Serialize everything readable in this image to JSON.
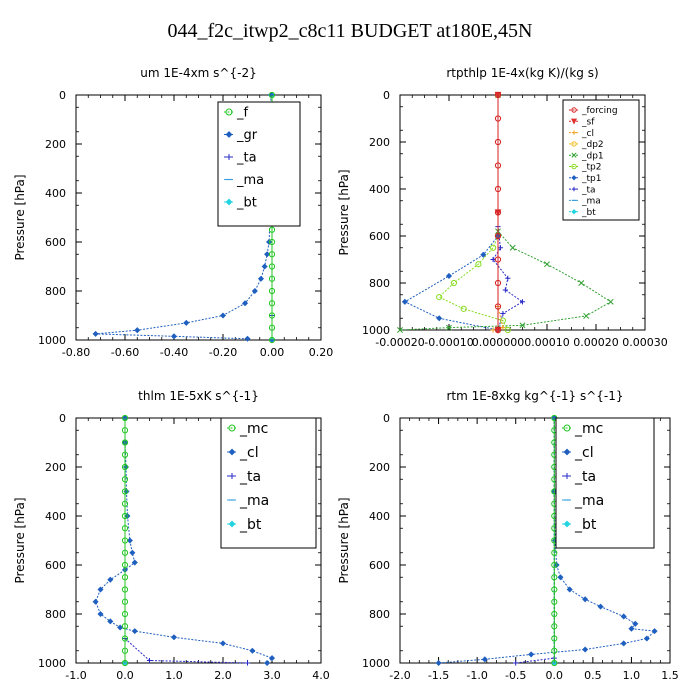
{
  "page": {
    "title": "044_f2c_itwp2_c8c11  BUDGET at180E,45N"
  },
  "chart_data": [
    {
      "type": "line",
      "title": "um   1E-4xm  s^{-2}",
      "ylabel": "Pressure [hPa]",
      "xlim": [
        -0.8,
        0.2
      ],
      "ylim": [
        1000,
        0
      ],
      "xticks": [
        -0.8,
        -0.6,
        -0.4,
        -0.2,
        0.0,
        0.2
      ],
      "xtick_labels": [
        "-0.80",
        "-0.60",
        "-0.40",
        "-0.20",
        "0.00",
        "0.20"
      ],
      "yticks": [
        0,
        200,
        400,
        600,
        800,
        1000
      ],
      "ytick_labels": [
        "0",
        "200",
        "400",
        "600",
        "800",
        "1000"
      ],
      "legend_position": "top-right",
      "series": [
        {
          "name": "_f",
          "color": "#22c522",
          "marker": "circle",
          "points": [
            [
              0,
              0
            ],
            [
              0,
              50
            ],
            [
              0,
              100
            ],
            [
              0,
              150
            ],
            [
              0,
              200
            ],
            [
              0,
              250
            ],
            [
              0,
              300
            ],
            [
              0,
              350
            ],
            [
              0,
              400
            ],
            [
              0,
              450
            ],
            [
              0,
              500
            ],
            [
              0,
              550
            ],
            [
              0,
              600
            ],
            [
              0,
              650
            ],
            [
              0,
              700
            ],
            [
              0,
              750
            ],
            [
              0,
              800
            ],
            [
              0,
              850
            ],
            [
              0,
              900
            ],
            [
              0,
              950
            ],
            [
              0,
              1000
            ]
          ]
        },
        {
          "name": "_gr",
          "color": "#1f5fbf",
          "marker": "diamond",
          "points": [
            [
              -0.005,
              0
            ],
            [
              -0.005,
              200
            ],
            [
              -0.006,
              400
            ],
            [
              -0.008,
              500
            ],
            [
              -0.012,
              600
            ],
            [
              -0.02,
              650
            ],
            [
              -0.03,
              700
            ],
            [
              -0.045,
              750
            ],
            [
              -0.07,
              800
            ],
            [
              -0.11,
              850
            ],
            [
              -0.2,
              900
            ],
            [
              -0.35,
              930
            ],
            [
              -0.55,
              960
            ],
            [
              -0.72,
              975
            ],
            [
              -0.4,
              985
            ],
            [
              -0.1,
              995
            ]
          ]
        },
        {
          "name": "_ta",
          "color": "#2a2ac8",
          "marker": "plus",
          "points": [
            [
              0,
              0
            ],
            [
              0,
              500
            ],
            [
              0,
              900
            ],
            [
              0,
              1000
            ]
          ]
        },
        {
          "name": "_ma",
          "color": "#3aa0e0",
          "marker": "dash",
          "points": [
            [
              0,
              0
            ],
            [
              0,
              500
            ],
            [
              0,
              1000
            ]
          ]
        },
        {
          "name": "_bt",
          "color": "#22d3e0",
          "marker": "diamond",
          "points": [
            [
              0,
              0
            ],
            [
              0,
              500
            ],
            [
              0,
              1000
            ]
          ]
        }
      ]
    },
    {
      "type": "line",
      "title": "rtpthlp   1E-4x(kg K)/(kg s)",
      "ylabel": "Pressure [hPa]",
      "xlim": [
        -0.0002,
        0.0003
      ],
      "ylim": [
        1000,
        0
      ],
      "xticks": [
        -0.0002,
        -0.0001,
        0.0,
        0.0001,
        0.0002,
        0.0003
      ],
      "xtick_labels": [
        "-0.00020",
        "-0.00010",
        "0.000000",
        "0.00010",
        "0.00020",
        "0.00030"
      ],
      "yticks": [
        0,
        200,
        400,
        600,
        800,
        1000
      ],
      "ytick_labels": [
        "0",
        "200",
        "400",
        "600",
        "800",
        "1000"
      ],
      "legend_position": "top-right",
      "series": [
        {
          "name": "_forcing",
          "color": "#d42020",
          "marker": "circle",
          "points": [
            [
              0,
              0
            ],
            [
              0,
              100
            ],
            [
              0,
              200
            ],
            [
              0,
              300
            ],
            [
              0,
              400
            ],
            [
              0,
              500
            ],
            [
              0,
              600
            ],
            [
              0,
              700
            ],
            [
              0,
              800
            ],
            [
              0,
              900
            ],
            [
              0,
              1000
            ]
          ]
        },
        {
          "name": "_sf",
          "color": "#e03030",
          "marker": "down-triangle",
          "points": [
            [
              0,
              0
            ],
            [
              0,
              500
            ],
            [
              0,
              1000
            ]
          ]
        },
        {
          "name": "_cl",
          "color": "#f0a020",
          "marker": "plus",
          "points": [
            [
              0,
              0
            ],
            [
              0,
              900
            ],
            [
              1e-05,
              990
            ],
            [
              -1e-05,
              1000
            ]
          ]
        },
        {
          "name": "_dp2",
          "color": "#f0c020",
          "marker": "circle",
          "points": [
            [
              0,
              0
            ],
            [
              0,
              1000
            ]
          ]
        },
        {
          "name": "_dp1",
          "color": "#30a030",
          "marker": "x",
          "points": [
            [
              0,
              0
            ],
            [
              0,
              580
            ],
            [
              3e-05,
              650
            ],
            [
              0.0001,
              720
            ],
            [
              0.00017,
              800
            ],
            [
              0.00023,
              880
            ],
            [
              0.00018,
              940
            ],
            [
              5e-05,
              980
            ],
            [
              -0.0001,
              990
            ],
            [
              -0.0002,
              1000
            ]
          ]
        },
        {
          "name": "_tp2",
          "color": "#88dd22",
          "marker": "circle",
          "points": [
            [
              0,
              0
            ],
            [
              0,
              600
            ],
            [
              -1e-05,
              650
            ],
            [
              -4e-05,
              720
            ],
            [
              -9e-05,
              800
            ],
            [
              -0.00012,
              860
            ],
            [
              -7e-05,
              910
            ],
            [
              1e-05,
              960
            ],
            [
              2e-05,
              1000
            ]
          ]
        },
        {
          "name": "_tp1",
          "color": "#1f5fbf",
          "marker": "diamond",
          "points": [
            [
              0,
              0
            ],
            [
              0,
              600
            ],
            [
              -3e-05,
              680
            ],
            [
              -0.0001,
              770
            ],
            [
              -0.00019,
              880
            ],
            [
              -0.00012,
              950
            ],
            [
              0,
              1000
            ]
          ]
        },
        {
          "name": "_ta",
          "color": "#2a2ac8",
          "marker": "plus",
          "points": [
            [
              0,
              0
            ],
            [
              0,
              560
            ],
            [
              5e-06,
              650
            ],
            [
              -1e-05,
              700
            ],
            [
              2e-05,
              780
            ],
            [
              1.5e-05,
              830
            ],
            [
              5e-05,
              880
            ],
            [
              1e-05,
              930
            ],
            [
              0,
              1000
            ]
          ]
        },
        {
          "name": "_ma",
          "color": "#3aa0e0",
          "marker": "dash",
          "points": [
            [
              0,
              0
            ],
            [
              0,
              1000
            ]
          ]
        },
        {
          "name": "_bt",
          "color": "#22d3e0",
          "marker": "diamond",
          "points": [
            [
              0,
              0
            ],
            [
              0,
              1000
            ]
          ]
        }
      ]
    },
    {
      "type": "line",
      "title": "thlm   1E-5xK  s^{-1}",
      "ylabel": "Pressure [hPa]",
      "xlim": [
        -1.0,
        4.0
      ],
      "ylim": [
        1000,
        0
      ],
      "xticks": [
        -1.0,
        0.0,
        1.0,
        2.0,
        3.0,
        4.0
      ],
      "xtick_labels": [
        "-1.0",
        "0.0",
        "1.0",
        "2.0",
        "3.0",
        "4.0"
      ],
      "yticks": [
        0,
        200,
        400,
        600,
        800,
        1000
      ],
      "ytick_labels": [
        "0",
        "200",
        "400",
        "600",
        "800",
        "1000"
      ],
      "legend_position": "top-right",
      "series": [
        {
          "name": "_mc",
          "color": "#22c522",
          "marker": "circle",
          "points": [
            [
              0,
              0
            ],
            [
              0,
              50
            ],
            [
              0,
              100
            ],
            [
              0,
              150
            ],
            [
              0,
              200
            ],
            [
              0,
              250
            ],
            [
              0,
              300
            ],
            [
              0,
              350
            ],
            [
              0,
              400
            ],
            [
              0,
              450
            ],
            [
              0,
              500
            ],
            [
              0,
              550
            ],
            [
              0,
              600
            ],
            [
              0,
              650
            ],
            [
              0,
              700
            ],
            [
              0,
              750
            ],
            [
              0,
              800
            ],
            [
              0,
              850
            ],
            [
              0,
              900
            ],
            [
              0,
              950
            ],
            [
              0,
              1000
            ]
          ]
        },
        {
          "name": "_cl",
          "color": "#1f5fbf",
          "marker": "diamond",
          "points": [
            [
              0,
              0
            ],
            [
              0,
              100
            ],
            [
              0.02,
              200
            ],
            [
              0.03,
              300
            ],
            [
              0.05,
              400
            ],
            [
              0.1,
              500
            ],
            [
              0.15,
              550
            ],
            [
              0.2,
              590
            ],
            [
              0,
              620
            ],
            [
              -0.3,
              660
            ],
            [
              -0.5,
              700
            ],
            [
              -0.6,
              750
            ],
            [
              -0.5,
              800
            ],
            [
              -0.3,
              830
            ],
            [
              -0.1,
              855
            ],
            [
              0.2,
              870
            ],
            [
              1.0,
              895
            ],
            [
              2.0,
              920
            ],
            [
              2.6,
              950
            ],
            [
              3.0,
              980
            ],
            [
              2.9,
              1000
            ]
          ]
        },
        {
          "name": "_ta",
          "color": "#2a2ac8",
          "marker": "plus",
          "points": [
            [
              0,
              0
            ],
            [
              0,
              900
            ],
            [
              0.5,
              990
            ],
            [
              2.5,
              1000
            ]
          ]
        },
        {
          "name": "_ma",
          "color": "#3aa0e0",
          "marker": "dash",
          "points": [
            [
              0,
              0
            ],
            [
              0,
              1000
            ]
          ]
        },
        {
          "name": "_bt",
          "color": "#22d3e0",
          "marker": "diamond",
          "points": [
            [
              0,
              0
            ],
            [
              0,
              1000
            ]
          ]
        }
      ]
    },
    {
      "type": "line",
      "title": "rtm   1E-8xkg  kg^{-1}  s^{-1}",
      "ylabel": "Pressure [hPa]",
      "xlim": [
        -2.0,
        1.5
      ],
      "ylim": [
        1000,
        0
      ],
      "xticks": [
        -2.0,
        -1.5,
        -1.0,
        -0.5,
        0.0,
        0.5,
        1.0,
        1.5
      ],
      "xtick_labels": [
        "-2.0",
        "-1.5",
        "-1.0",
        "-0.5",
        "0.0",
        "0.5",
        "1.0",
        "1.5"
      ],
      "yticks": [
        0,
        200,
        400,
        600,
        800,
        1000
      ],
      "ytick_labels": [
        "0",
        "200",
        "400",
        "600",
        "800",
        "1000"
      ],
      "legend_position": "top-right",
      "series": [
        {
          "name": "_mc",
          "color": "#22c522",
          "marker": "circle",
          "points": [
            [
              0,
              0
            ],
            [
              0,
              50
            ],
            [
              0,
              100
            ],
            [
              0,
              150
            ],
            [
              0,
              200
            ],
            [
              0,
              250
            ],
            [
              0,
              300
            ],
            [
              0,
              350
            ],
            [
              0,
              400
            ],
            [
              0,
              450
            ],
            [
              0,
              500
            ],
            [
              0,
              550
            ],
            [
              0,
              600
            ],
            [
              0,
              650
            ],
            [
              0,
              700
            ],
            [
              0,
              750
            ],
            [
              0,
              800
            ],
            [
              0,
              850
            ],
            [
              0,
              900
            ],
            [
              0,
              950
            ],
            [
              0,
              1000
            ]
          ]
        },
        {
          "name": "_cl",
          "color": "#1f5fbf",
          "marker": "diamond",
          "points": [
            [
              0,
              0
            ],
            [
              0,
              300
            ],
            [
              0.01,
              500
            ],
            [
              0.03,
              600
            ],
            [
              0.08,
              650
            ],
            [
              0.2,
              700
            ],
            [
              0.4,
              740
            ],
            [
              0.6,
              770
            ],
            [
              0.9,
              810
            ],
            [
              1.05,
              840
            ],
            [
              1.0,
              860
            ],
            [
              1.3,
              870
            ],
            [
              1.2,
              900
            ],
            [
              0.9,
              920
            ],
            [
              0.4,
              945
            ],
            [
              -0.3,
              965
            ],
            [
              -0.9,
              985
            ],
            [
              -1.5,
              1000
            ]
          ]
        },
        {
          "name": "_ta",
          "color": "#2a2ac8",
          "marker": "plus",
          "points": [
            [
              0,
              0
            ],
            [
              0,
              980
            ],
            [
              -0.5,
              1000
            ]
          ]
        },
        {
          "name": "_ma",
          "color": "#3aa0e0",
          "marker": "dash",
          "points": [
            [
              0,
              0
            ],
            [
              0,
              1000
            ]
          ]
        },
        {
          "name": "_bt",
          "color": "#22d3e0",
          "marker": "diamond",
          "points": [
            [
              0,
              0
            ],
            [
              0,
              1000
            ]
          ]
        }
      ]
    }
  ]
}
